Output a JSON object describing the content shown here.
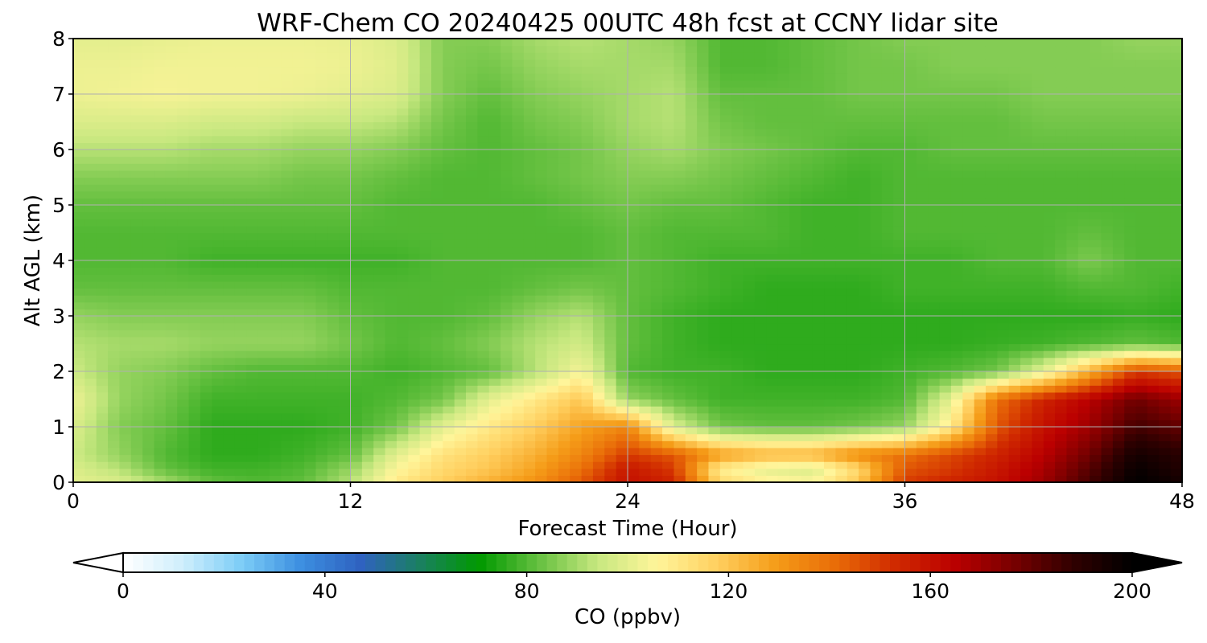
{
  "chart_data": {
    "type": "heatmap",
    "title": "WRF-Chem CO  20240425 00UTC 48h fcst at CCNY lidar site",
    "xlabel": "Forecast Time (Hour)",
    "ylabel": "Alt AGL (km)",
    "xlim": [
      0,
      48
    ],
    "ylim": [
      0,
      8
    ],
    "xticks": [
      "0",
      "12",
      "24",
      "36",
      "48"
    ],
    "yticks": [
      "0",
      "1",
      "2",
      "3",
      "4",
      "5",
      "6",
      "7",
      "8"
    ],
    "grid": true,
    "x": [
      0,
      2,
      4,
      6,
      8,
      10,
      12,
      14,
      16,
      18,
      20,
      22,
      24,
      26,
      28,
      30,
      32,
      34,
      36,
      38,
      40,
      42,
      44,
      46,
      48
    ],
    "y": [
      0,
      0.25,
      0.5,
      1,
      1.5,
      2,
      2.5,
      3,
      3.5,
      4,
      4.5,
      5,
      5.5,
      6,
      6.5,
      7,
      7.5,
      8
    ],
    "z": [
      [
        100,
        98,
        90,
        82,
        80,
        82,
        92,
        110,
        118,
        125,
        132,
        145,
        160,
        155,
        115,
        108,
        105,
        120,
        150,
        155,
        160,
        170,
        185,
        200,
        195
      ],
      [
        98,
        92,
        82,
        78,
        78,
        80,
        88,
        105,
        115,
        120,
        128,
        140,
        158,
        150,
        108,
        100,
        98,
        115,
        145,
        150,
        158,
        168,
        182,
        198,
        192
      ],
      [
        95,
        88,
        80,
        76,
        76,
        78,
        82,
        100,
        112,
        118,
        125,
        135,
        150,
        145,
        130,
        125,
        125,
        135,
        140,
        148,
        155,
        165,
        178,
        195,
        190
      ],
      [
        98,
        86,
        82,
        76,
        76,
        76,
        78,
        84,
        100,
        110,
        118,
        128,
        135,
        98,
        84,
        82,
        82,
        84,
        88,
        110,
        145,
        160,
        170,
        185,
        180
      ],
      [
        102,
        88,
        84,
        78,
        78,
        78,
        78,
        80,
        84,
        100,
        110,
        120,
        88,
        82,
        78,
        78,
        78,
        78,
        80,
        100,
        140,
        155,
        165,
        178,
        170
      ],
      [
        95,
        88,
        86,
        82,
        80,
        80,
        80,
        78,
        80,
        82,
        92,
        104,
        80,
        78,
        78,
        76,
        76,
        76,
        78,
        80,
        84,
        100,
        125,
        150,
        145
      ],
      [
        92,
        90,
        90,
        88,
        88,
        88,
        84,
        80,
        82,
        86,
        92,
        96,
        82,
        78,
        76,
        76,
        76,
        76,
        76,
        76,
        77,
        78,
        80,
        82,
        80
      ],
      [
        88,
        86,
        86,
        86,
        86,
        86,
        82,
        80,
        80,
        82,
        88,
        92,
        82,
        78,
        76,
        76,
        76,
        76,
        76,
        76,
        76,
        76,
        76,
        77,
        76
      ],
      [
        82,
        82,
        82,
        82,
        82,
        82,
        80,
        80,
        80,
        80,
        82,
        84,
        82,
        80,
        78,
        76,
        76,
        76,
        78,
        78,
        78,
        78,
        80,
        80,
        78
      ],
      [
        80,
        80,
        80,
        78,
        78,
        78,
        78,
        78,
        80,
        80,
        80,
        80,
        82,
        80,
        78,
        78,
        78,
        78,
        78,
        78,
        80,
        80,
        85,
        80,
        80
      ],
      [
        80,
        80,
        80,
        80,
        80,
        80,
        80,
        80,
        80,
        80,
        80,
        80,
        82,
        80,
        80,
        80,
        78,
        78,
        80,
        80,
        80,
        80,
        82,
        80,
        80
      ],
      [
        82,
        82,
        82,
        82,
        82,
        82,
        82,
        80,
        80,
        80,
        80,
        82,
        84,
        82,
        82,
        80,
        78,
        78,
        80,
        80,
        80,
        80,
        80,
        80,
        80
      ],
      [
        86,
        86,
        86,
        86,
        86,
        84,
        84,
        82,
        80,
        80,
        82,
        84,
        86,
        86,
        84,
        82,
        80,
        78,
        80,
        80,
        80,
        80,
        80,
        80,
        80
      ],
      [
        92,
        92,
        92,
        90,
        90,
        88,
        88,
        86,
        82,
        80,
        82,
        84,
        88,
        90,
        86,
        84,
        82,
        80,
        80,
        82,
        82,
        82,
        82,
        82,
        82
      ],
      [
        98,
        98,
        98,
        96,
        96,
        94,
        94,
        92,
        84,
        80,
        84,
        86,
        90,
        92,
        84,
        82,
        82,
        82,
        82,
        82,
        82,
        84,
        84,
        84,
        84
      ],
      [
        102,
        103,
        104,
        103,
        103,
        102,
        100,
        98,
        86,
        82,
        86,
        88,
        90,
        92,
        82,
        82,
        82,
        84,
        84,
        84,
        84,
        86,
        86,
        86,
        86
      ],
      [
        102,
        102,
        103,
        103,
        103,
        103,
        102,
        99,
        86,
        84,
        88,
        90,
        90,
        90,
        80,
        80,
        82,
        84,
        84,
        86,
        86,
        86,
        86,
        86,
        86
      ],
      [
        100,
        100,
        101,
        102,
        102,
        102,
        101,
        98,
        86,
        86,
        90,
        92,
        90,
        88,
        80,
        80,
        82,
        84,
        86,
        86,
        86,
        86,
        86,
        88,
        88
      ]
    ],
    "colorbar": {
      "label": "CO  (ppbv)",
      "ticks": [
        "0",
        "40",
        "80",
        "120",
        "160",
        "200"
      ],
      "min": 0,
      "max": 200,
      "extend": "both",
      "colors": [
        "#ffffff",
        "#cfeefc",
        "#7ccdf7",
        "#3c8ee0",
        "#2f62c0",
        "#1a8060",
        "#009900",
        "#66c040",
        "#c8e880",
        "#fff59a",
        "#ffd060",
        "#f59c18",
        "#e96c08",
        "#d02a00",
        "#bb0000",
        "#780000",
        "#300000",
        "#000000"
      ]
    }
  }
}
